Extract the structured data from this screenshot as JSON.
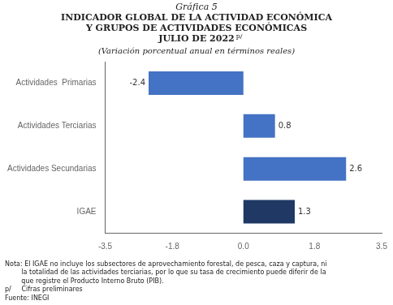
{
  "chart_data": {
    "type": "bar",
    "orientation": "horizontal",
    "title": [
      "Gráfica 5",
      "INDICADOR GLOBAL DE LA ACTIVIDAD ECONÓMICA",
      "Y GRUPOS DE ACTIVIDADES ECONÓMICAS",
      "JULIO DE 2022"
    ],
    "subtitle": "(Variación porcentual anual en términos reales)",
    "annotations": [
      "p/",
      "Nota: El IGAE no incluye los subsectores de aprovechamiento forestal, de pesca, caza y captura, ni\n        la totalidad de las actividades terciarias, por lo que su tasa de crecimiento puede diferir de la\n        que registre el Producto Interno Bruto (PIB).\np/     Cifras preliminares\nFuente: INEGI"
    ],
    "categories": [
      "IGAE",
      "Actividades Secundarias",
      "Actividades Terciarias",
      "Actividades  Primarias"
    ],
    "values": [
      1.3,
      2.6,
      0.8,
      -2.4
    ],
    "colors": [
      "#1f3864",
      "#4472c4",
      "#4472c4",
      "#4472c4"
    ],
    "xlim": [
      -3.5,
      3.5
    ],
    "xticks": [
      -3.5,
      -1.8,
      {
        "value": 0.0,
        "label": "0.0"
      },
      1.8,
      3.5
    ],
    "grid": false,
    "data_labels": true
  }
}
